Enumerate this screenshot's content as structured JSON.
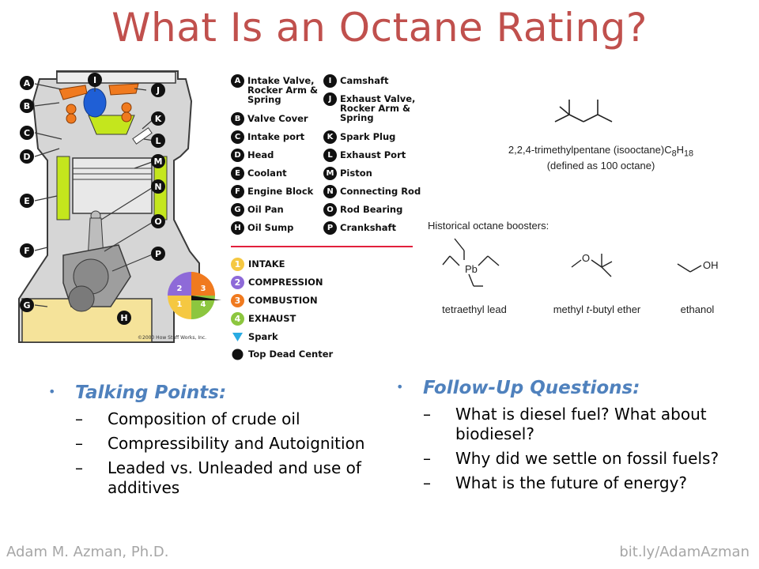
{
  "slide": {
    "title": "What Is an Octane Rating?"
  },
  "engine_diagram": {
    "callouts": [
      "A",
      "B",
      "C",
      "D",
      "E",
      "F",
      "G",
      "H",
      "I",
      "J",
      "K",
      "L",
      "M",
      "N",
      "O",
      "P"
    ],
    "cycle_numbers": [
      "1",
      "2",
      "3",
      "4"
    ],
    "copyright": "©2000 How Stuff Works, Inc."
  },
  "legend": {
    "parts_left": [
      {
        "badge": "A",
        "label": "Intake Valve, Rocker Arm & Spring"
      },
      {
        "badge": "B",
        "label": "Valve Cover"
      },
      {
        "badge": "C",
        "label": "Intake port"
      },
      {
        "badge": "D",
        "label": "Head"
      },
      {
        "badge": "E",
        "label": "Coolant"
      },
      {
        "badge": "F",
        "label": "Engine Block"
      },
      {
        "badge": "G",
        "label": "Oil Pan"
      },
      {
        "badge": "H",
        "label": "Oil Sump"
      }
    ],
    "parts_right": [
      {
        "badge": "I",
        "label": "Camshaft"
      },
      {
        "badge": "J",
        "label": "Exhaust Valve, Rocker Arm & Spring"
      },
      {
        "badge": "K",
        "label": "Spark Plug"
      },
      {
        "badge": "L",
        "label": "Exhaust Port"
      },
      {
        "badge": "M",
        "label": "Piston"
      },
      {
        "badge": "N",
        "label": "Connecting Rod"
      },
      {
        "badge": "O",
        "label": "Rod Bearing"
      },
      {
        "badge": "P",
        "label": "Crankshaft"
      }
    ],
    "strokes": [
      {
        "badge": "1",
        "label": "INTAKE",
        "color": "#f5c842"
      },
      {
        "badge": "2",
        "label": "COMPRESSION",
        "color": "#8e6ad8"
      },
      {
        "badge": "3",
        "label": "COMBUSTION",
        "color": "#f07a1f"
      },
      {
        "badge": "4",
        "label": "EXHAUST",
        "color": "#8cc63f"
      }
    ],
    "spark_label": "Spark",
    "tdc_label": "Top Dead Center"
  },
  "chemistry": {
    "isooctane_name": "2,2,4-trimethylpentane (isooctane)C",
    "isooctane_c_sub": "8",
    "isooctane_h": "H",
    "isooctane_h_sub": "18",
    "isooctane_note": "(defined as 100 octane)",
    "boosters_heading": "Historical octane boosters:",
    "pb_label": "Pb",
    "o_label": "O",
    "oh_label": "OH",
    "tel_label": "tetraethyl lead",
    "mtbe_prefix": "methyl ",
    "mtbe_italic": "t",
    "mtbe_suffix": "-butyl ether",
    "ethanol_label": "ethanol"
  },
  "talking_points": {
    "heading": "Talking Points:",
    "items": [
      "Composition of crude oil",
      "Compressibility and Autoignition",
      "Leaded vs. Unleaded and use of additives"
    ]
  },
  "follow_up": {
    "heading": "Follow-Up Questions:",
    "items": [
      "What is diesel fuel? What about biodiesel?",
      "Why did we settle on fossil fuels?",
      "What is the future of energy?"
    ]
  },
  "bullet_glyph": "•",
  "dash_glyph": "–",
  "footer": {
    "author": "Adam M. Azman, Ph.D.",
    "link": "bit.ly/AdamAzman"
  },
  "colors": {
    "title": "#c0504d",
    "bullet_heading": "#4f81bd",
    "footer": "#a6a6a6",
    "divider": "#e2203c",
    "engine_orange": "#f07a1f",
    "engine_blue": "#1f5fd6",
    "engine_green": "#c4e61d",
    "oil": "#f5e39a"
  }
}
